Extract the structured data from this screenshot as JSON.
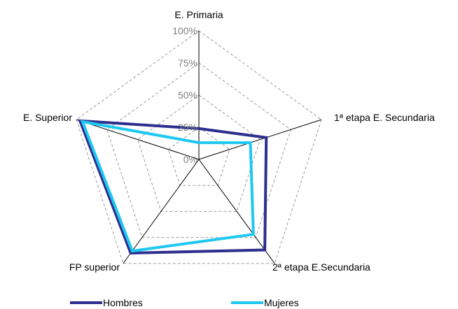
{
  "chart_data": {
    "type": "radar",
    "categories": [
      "E. Primaria",
      "1ª etapa E. Secundaria",
      "2ª etapa E.Secundaria",
      "FP superior",
      "E. Superior"
    ],
    "ticks": [
      "0%",
      "25%",
      "50%",
      "75%",
      "100%"
    ],
    "rlim": [
      0,
      100
    ],
    "grid": true,
    "legend": "bottom",
    "series": [
      {
        "name": "Hombres",
        "color": "#2E2E8F",
        "values": [
          24,
          55,
          87,
          90,
          97
        ]
      },
      {
        "name": "Mujeres",
        "color": "#1EC8F0",
        "values": [
          13,
          42,
          72,
          88,
          95
        ]
      }
    ]
  }
}
